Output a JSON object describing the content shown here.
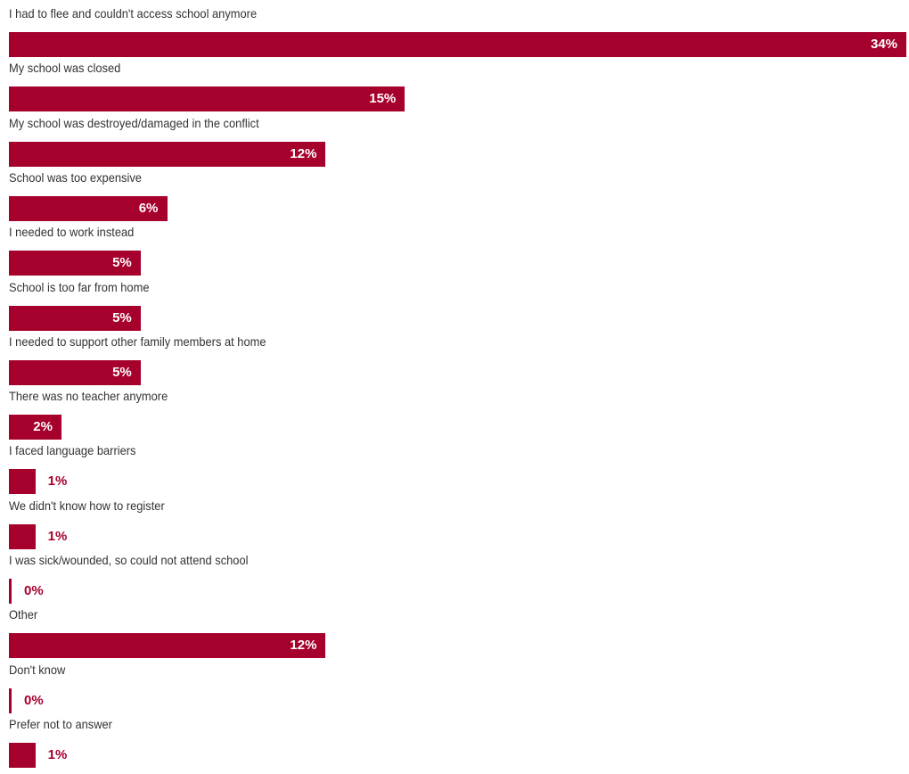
{
  "chart_data": {
    "type": "bar",
    "orientation": "horizontal",
    "title": "",
    "xlabel": "",
    "ylabel": "",
    "xlim": [
      0,
      34
    ],
    "grid": false,
    "legend": "none",
    "bar_color": "#a6002c",
    "inside_label_color": "#ffffff",
    "outside_label_color": "#a6002c",
    "categories": [
      "I had to flee and couldn't access school anymore",
      "My school was closed",
      "My school was destroyed/damaged in the conflict",
      "School was too expensive",
      "I needed to work instead",
      "School is too far from home",
      "I needed to support other family members at home",
      "There was no teacher anymore",
      "I faced language barriers",
      "We didn't know how to register",
      "I was sick/wounded, so could not attend school",
      "Other",
      "Don't know",
      "Prefer not to answer"
    ],
    "values": [
      34,
      15,
      12,
      6,
      5,
      5,
      5,
      2,
      1,
      1,
      0,
      12,
      0,
      1
    ],
    "value_labels": [
      "34%",
      "15%",
      "12%",
      "6%",
      "5%",
      "5%",
      "5%",
      "2%",
      "1%",
      "1%",
      "0%",
      "12%",
      "0%",
      "1%"
    ]
  }
}
